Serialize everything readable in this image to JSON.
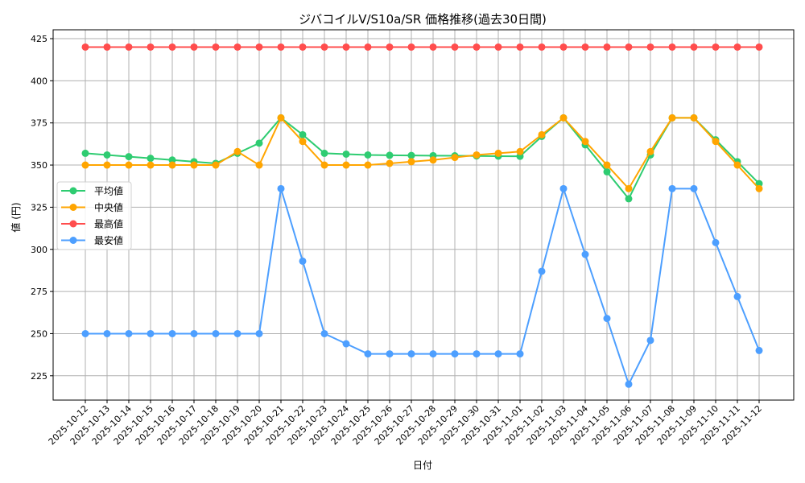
{
  "chart_data": {
    "type": "line",
    "title": "ジバコイルV/S10a/SR 価格推移(過去30日間)",
    "xlabel": "日付",
    "ylabel": "値 (円)",
    "ylim": [
      210,
      430
    ],
    "yticks": [
      225,
      250,
      275,
      300,
      325,
      350,
      375,
      400,
      425
    ],
    "grid": true,
    "legend_position": "center left",
    "x": [
      "2025-10-12",
      "2025-10-13",
      "2025-10-14",
      "2025-10-15",
      "2025-10-16",
      "2025-10-17",
      "2025-10-18",
      "2025-10-19",
      "2025-10-20",
      "2025-10-21",
      "2025-10-22",
      "2025-10-23",
      "2025-10-24",
      "2025-10-25",
      "2025-10-26",
      "2025-10-27",
      "2025-10-28",
      "2025-10-29",
      "2025-10-30",
      "2025-10-31",
      "2025-11-01",
      "2025-11-02",
      "2025-11-03",
      "2025-11-04",
      "2025-11-05",
      "2025-11-06",
      "2025-11-07",
      "2025-11-08",
      "2025-11-09",
      "2025-11-10",
      "2025-11-11",
      "2025-11-12"
    ],
    "series": [
      {
        "name": "平均値",
        "color": "#2ecc71",
        "values": [
          357,
          356,
          355,
          354,
          353,
          352,
          351,
          357,
          363,
          378,
          368,
          357,
          356.5,
          356,
          355.8,
          355.7,
          355.6,
          355.5,
          355.4,
          355.3,
          355.2,
          367,
          378,
          362,
          346,
          330,
          356,
          378,
          378,
          365,
          352,
          339
        ]
      },
      {
        "name": "中央値",
        "color": "#ffa500",
        "values": [
          350,
          350,
          350,
          350,
          350,
          350,
          350,
          358,
          350,
          378,
          364,
          350,
          350,
          350,
          351,
          352,
          353,
          354.5,
          356,
          357,
          358,
          368,
          378,
          364,
          350,
          336,
          358,
          378,
          378,
          364,
          350,
          336
        ]
      },
      {
        "name": "最高値",
        "color": "#ff4d4d",
        "values": [
          420,
          420,
          420,
          420,
          420,
          420,
          420,
          420,
          420,
          420,
          420,
          420,
          420,
          420,
          420,
          420,
          420,
          420,
          420,
          420,
          420,
          420,
          420,
          420,
          420,
          420,
          420,
          420,
          420,
          420,
          420,
          420
        ]
      },
      {
        "name": "最安値",
        "color": "#4d9fff",
        "values": [
          250,
          250,
          250,
          250,
          250,
          250,
          250,
          250,
          250,
          336,
          293,
          250,
          244,
          238,
          238,
          238,
          238,
          238,
          238,
          238,
          238,
          287,
          336,
          297,
          259,
          220,
          246,
          336,
          336,
          304,
          272,
          240
        ]
      }
    ]
  }
}
